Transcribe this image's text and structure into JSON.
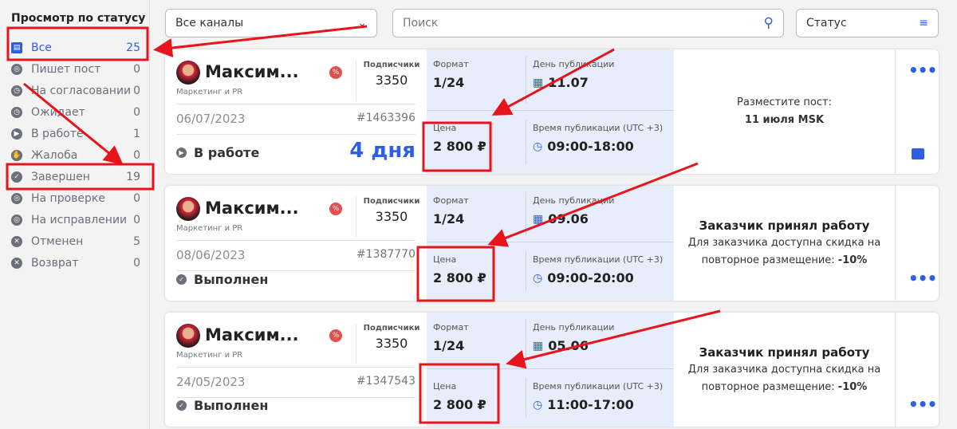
{
  "sidebar": {
    "title": "Просмотр по статусу",
    "items": [
      {
        "label": "Все",
        "count": "25",
        "icon": "inbox-icon",
        "active": true
      },
      {
        "label": "Пишет пост",
        "count": "0",
        "icon": "search-doc-icon"
      },
      {
        "label": "На согласовании",
        "count": "0",
        "icon": "clock-icon"
      },
      {
        "label": "Ожидает",
        "count": "0",
        "icon": "clock-icon"
      },
      {
        "label": "В работе",
        "count": "1",
        "icon": "play-icon"
      },
      {
        "label": "Жалоба",
        "count": "0",
        "icon": "hand-icon"
      },
      {
        "label": "Завершен",
        "count": "19",
        "icon": "check-icon"
      },
      {
        "label": "На проверке",
        "count": "0",
        "icon": "search-doc-icon"
      },
      {
        "label": "На исправлении",
        "count": "0",
        "icon": "search-doc-icon"
      },
      {
        "label": "Отменен",
        "count": "5",
        "icon": "x-circle-icon"
      },
      {
        "label": "Возврат",
        "count": "0",
        "icon": "x-circle-icon"
      }
    ]
  },
  "toolbar": {
    "channel": "Все каналы",
    "search_placeholder": "Поиск",
    "status": "Статус"
  },
  "labels": {
    "subs": "Подписчики",
    "format": "Формат",
    "day": "День публикации",
    "price": "Цена",
    "time": "Время публикации (UTC +3)"
  },
  "orders": [
    {
      "name": "Максим...",
      "category": "Маркетинг и PR",
      "subs": "3350",
      "date": "06/07/2023",
      "id": "#1463396",
      "status": "В работе",
      "days": "4 дня",
      "format": "1/24",
      "day": "11.07",
      "price": "2 800 ₽",
      "time": "09:00-18:00",
      "msg_line1": "Разместите пост:",
      "msg_line2": "11 июля MSK"
    },
    {
      "name": "Максим...",
      "category": "Маркетинг и PR",
      "subs": "3350",
      "date": "08/06/2023",
      "id": "#1387770",
      "status": "Выполнен",
      "days": "",
      "format": "1/24",
      "day": "09.06",
      "price": "2 800 ₽",
      "time": "09:00-20:00",
      "msg_title": "Заказчик принял работу",
      "msg_body": "Для заказчика доступна скидка на повторное размещение:",
      "msg_discount": "-10%"
    },
    {
      "name": "Максим...",
      "category": "Маркетинг и PR",
      "subs": "3350",
      "date": "24/05/2023",
      "id": "#1347543",
      "status": "Выполнен",
      "days": "",
      "format": "1/24",
      "day": "05.06",
      "price": "2 800 ₽",
      "time": "11:00-17:00",
      "msg_title": "Заказчик принял работу",
      "msg_body": "Для заказчика доступна скидка на повторное размещение:",
      "msg_discount": "-10%"
    }
  ],
  "colors": {
    "accent": "#2f5fe0",
    "annotation": "#e8141c",
    "panel": "#e7edfa"
  }
}
